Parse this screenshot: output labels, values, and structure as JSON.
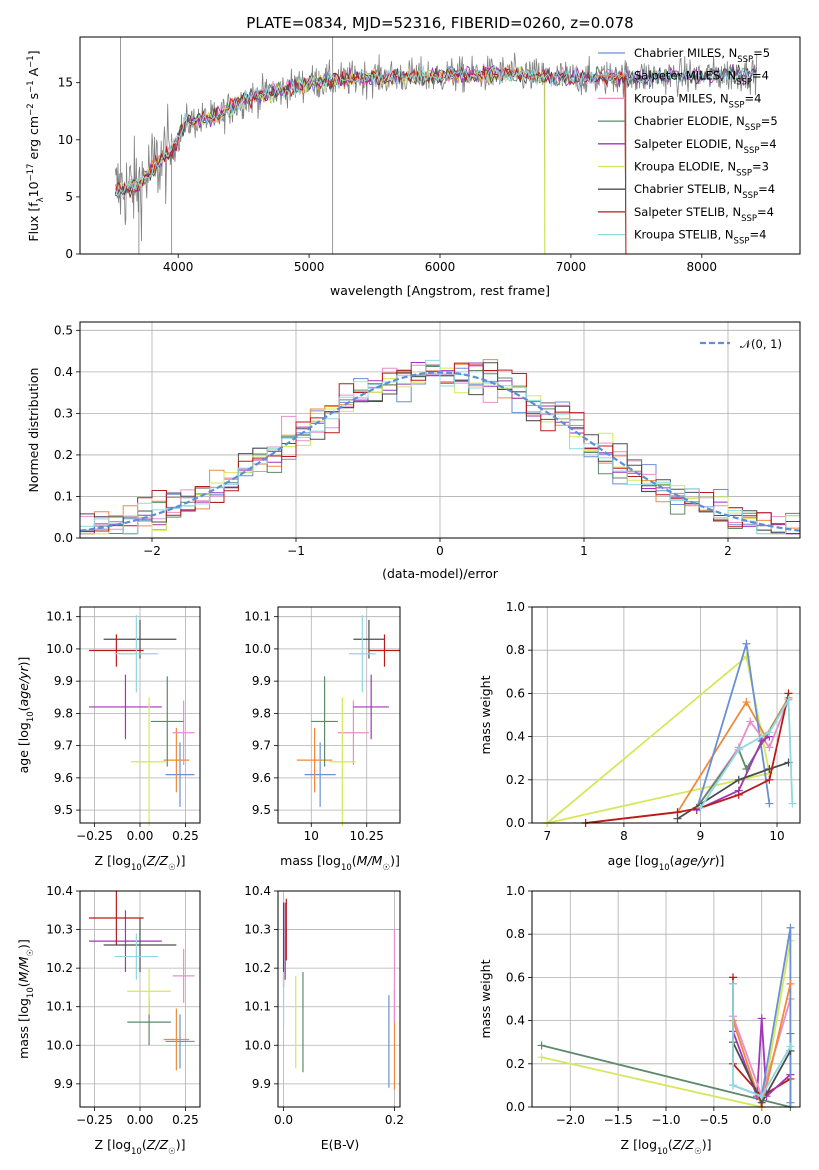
{
  "title": "PLATE=0834, MJD=52316, FIBERID=0260, z=0.078",
  "colors": {
    "chab_miles": "#6a8fd6",
    "salp_miles": "#f08a3a",
    "krou_miles": "#e98ecb",
    "chab_elodie": "#5e8a6a",
    "salp_elodie": "#a235b8",
    "krou_elodie": "#d6e85a",
    "chab_stelib": "#4d4d4d",
    "salp_stelib": "#b81c1c",
    "krou_stelib": "#8fd9e0",
    "data": "#808080"
  },
  "chart_data": [
    {
      "id": "spectrum",
      "type": "line",
      "xlabel": "wavelength [Angstrom, rest frame]",
      "ylabel": "Flux [f_λ 10^-17 erg cm^-2 s^-1 A^-1]",
      "xlim": [
        3250,
        8750
      ],
      "ylim": [
        0,
        19
      ],
      "xticks": [
        4000,
        5000,
        6000,
        7000,
        8000
      ],
      "yticks": [
        0,
        5,
        10,
        15
      ],
      "legend": [
        "Chabrier MILES, N_SSP=5",
        "Salpeter MILES, N_SSP=4",
        "Kroupa MILES, N_SSP=4",
        "Chabrier ELODIE, N_SSP=5",
        "Salpeter ELODIE, N_SSP=4",
        "Kroupa ELODIE, N_SSP=3",
        "Chabrier STELIB, N_SSP=4",
        "Salpeter STELIB, N_SSP=4",
        "Kroupa STELIB, N_SSP=4"
      ],
      "continuum": [
        [
          3520,
          5.5
        ],
        [
          3700,
          6
        ],
        [
          3850,
          8
        ],
        [
          3950,
          9
        ],
        [
          4050,
          11.5
        ],
        [
          4300,
          12
        ],
        [
          4500,
          13.5
        ],
        [
          5000,
          15
        ],
        [
          5500,
          15.5
        ],
        [
          6000,
          15.6
        ],
        [
          6500,
          15.8
        ],
        [
          7000,
          15.4
        ],
        [
          7500,
          15.5
        ],
        [
          8000,
          15.6
        ],
        [
          8400,
          15.8
        ]
      ]
    },
    {
      "id": "residuals",
      "type": "histogram",
      "xlabel": "(data-model)/error",
      "ylabel": "Normed distribution",
      "xlim": [
        -2.5,
        2.5
      ],
      "ylim": [
        0,
        0.52
      ],
      "xticks": [
        -2,
        -1,
        0,
        1,
        2
      ],
      "yticks": [
        0.0,
        0.1,
        0.2,
        0.3,
        0.4,
        0.5
      ],
      "legend": "N(0,1)",
      "bin_width": 0.1
    },
    {
      "id": "age_vs_Z",
      "type": "scatter",
      "xlabel": "Z [log10(Z/Z☉)]",
      "ylabel": "age [log10(age/yr)]",
      "xlim": [
        -0.33,
        0.33
      ],
      "ylim": [
        9.46,
        10.13
      ],
      "xticks": [
        -0.25,
        0.0,
        0.25
      ],
      "ytick_labels": [
        "9.5",
        "9.6",
        "9.7",
        "9.8",
        "9.9",
        "10.0",
        "10.1"
      ],
      "points": [
        {
          "s": "chab_miles",
          "x": 0.22,
          "y": 9.61,
          "dx": 0.08,
          "dy": 0.1
        },
        {
          "s": "salp_miles",
          "x": 0.2,
          "y": 9.655,
          "dx": 0.07,
          "dy": 0.1
        },
        {
          "s": "krou_miles",
          "x": 0.24,
          "y": 9.74,
          "dx": 0.06,
          "dy": 0.1
        },
        {
          "s": "chab_elodie",
          "x": 0.15,
          "y": 9.775,
          "dx": 0.09,
          "dy": 0.14
        },
        {
          "s": "salp_elodie",
          "x": -0.08,
          "y": 9.82,
          "dx": 0.2,
          "dy": 0.1
        },
        {
          "s": "krou_elodie",
          "x": 0.05,
          "y": 9.65,
          "dx": 0.1,
          "dy": 0.2
        },
        {
          "s": "chab_stelib",
          "x": 0.0,
          "y": 10.03,
          "dx": 0.2,
          "dy": 0.06
        },
        {
          "s": "salp_stelib",
          "x": -0.13,
          "y": 9.995,
          "dx": 0.15,
          "dy": 0.05
        },
        {
          "s": "krou_stelib",
          "x": -0.02,
          "y": 9.985,
          "dx": 0.12,
          "dy": 0.12
        }
      ]
    },
    {
      "id": "age_vs_mass",
      "type": "scatter",
      "xlabel": "mass [log10(M/M☉)]",
      "ylabel": "",
      "xlim": [
        9.85,
        10.4
      ],
      "ylim": [
        9.46,
        10.13
      ],
      "xticks": [
        10.0,
        10.25
      ],
      "ytick_labels": [
        "9.5",
        "9.6",
        "9.7",
        "9.8",
        "9.9",
        "10.0",
        "10.1"
      ],
      "points": [
        {
          "s": "chab_miles",
          "x": 10.04,
          "y": 9.61,
          "dx": 0.07,
          "dy": 0.1
        },
        {
          "s": "salp_miles",
          "x": 10.015,
          "y": 9.655,
          "dx": 0.08,
          "dy": 0.1
        },
        {
          "s": "krou_miles",
          "x": 10.19,
          "y": 9.74,
          "dx": 0.07,
          "dy": 0.1
        },
        {
          "s": "chab_elodie",
          "x": 10.06,
          "y": 9.775,
          "dx": 0.06,
          "dy": 0.14
        },
        {
          "s": "salp_elodie",
          "x": 10.27,
          "y": 9.82,
          "dx": 0.08,
          "dy": 0.1
        },
        {
          "s": "krou_elodie",
          "x": 10.14,
          "y": 9.65,
          "dx": 0.06,
          "dy": 0.2
        },
        {
          "s": "chab_stelib",
          "x": 10.26,
          "y": 10.03,
          "dx": 0.07,
          "dy": 0.06
        },
        {
          "s": "salp_stelib",
          "x": 10.33,
          "y": 9.995,
          "dx": 0.07,
          "dy": 0.05
        },
        {
          "s": "krou_stelib",
          "x": 10.23,
          "y": 9.985,
          "dx": 0.06,
          "dy": 0.12
        }
      ]
    },
    {
      "id": "weight_vs_age",
      "type": "line",
      "xlabel": "age [log10(age/yr)]",
      "ylabel": "mass weight",
      "xlim": [
        6.8,
        10.3
      ],
      "ylim": [
        0,
        1
      ],
      "xticks": [
        7,
        8,
        9,
        10
      ],
      "yticks": [
        0.0,
        0.2,
        0.4,
        0.6,
        0.8,
        1.0
      ],
      "series": [
        {
          "s": "krou_elodie",
          "pts": [
            [
              7.0,
              0.0
            ],
            [
              9.6,
              0.77
            ],
            [
              9.9,
              0.23
            ],
            [
              7.0,
              0.0
            ]
          ]
        },
        {
          "s": "salp_miles",
          "pts": [
            [
              7.5,
              0.0
            ],
            [
              8.7,
              0.05
            ],
            [
              9.6,
              0.56
            ],
            [
              9.85,
              0.4
            ],
            [
              10.15,
              0.58
            ]
          ]
        },
        {
          "s": "chab_miles",
          "pts": [
            [
              8.95,
              0.06
            ],
            [
              9.6,
              0.83
            ],
            [
              9.9,
              0.09
            ]
          ]
        },
        {
          "s": "krou_miles",
          "pts": [
            [
              8.95,
              0.07
            ],
            [
              9.5,
              0.35
            ],
            [
              9.65,
              0.47
            ],
            [
              9.9,
              0.35
            ],
            [
              10.15,
              0.57
            ]
          ]
        },
        {
          "s": "chab_elodie",
          "pts": [
            [
              8.95,
              0.07
            ],
            [
              9.5,
              0.34
            ],
            [
              9.6,
              0.25
            ],
            [
              10.15,
              0.57
            ]
          ]
        },
        {
          "s": "salp_elodie",
          "pts": [
            [
              8.95,
              0.06
            ],
            [
              9.5,
              0.15
            ],
            [
              9.8,
              0.38
            ],
            [
              9.9,
              0.4
            ]
          ]
        },
        {
          "s": "chab_stelib",
          "pts": [
            [
              8.7,
              0.02
            ],
            [
              9.5,
              0.2
            ],
            [
              9.9,
              0.25
            ],
            [
              10.15,
              0.28
            ]
          ]
        },
        {
          "s": "salp_stelib",
          "pts": [
            [
              7.5,
              0.0
            ],
            [
              8.7,
              0.05
            ],
            [
              9.0,
              0.07
            ],
            [
              9.5,
              0.13
            ],
            [
              9.9,
              0.2
            ],
            [
              10.15,
              0.6
            ]
          ]
        },
        {
          "s": "krou_stelib",
          "pts": [
            [
              9.0,
              0.07
            ],
            [
              9.5,
              0.34
            ],
            [
              9.9,
              0.42
            ],
            [
              10.15,
              0.57
            ],
            [
              10.2,
              0.09
            ]
          ]
        }
      ]
    },
    {
      "id": "mass_vs_Z",
      "type": "scatter",
      "xlabel": "Z [log10(Z/Z☉)]",
      "ylabel": "mass [log10(M/M☉)]",
      "xlim": [
        -0.33,
        0.33
      ],
      "ylim": [
        9.84,
        10.4
      ],
      "xticks": [
        -0.25,
        0.0,
        0.25
      ],
      "ytick_labels": [
        "9.9",
        "10.0",
        "10.1",
        "10.2",
        "10.3",
        "10.4"
      ],
      "points": [
        {
          "s": "chab_miles",
          "x": 0.22,
          "y": 10.01,
          "dx": 0.08,
          "dy": 0.07
        },
        {
          "s": "salp_miles",
          "x": 0.2,
          "y": 10.015,
          "dx": 0.07,
          "dy": 0.08
        },
        {
          "s": "krou_miles",
          "x": 0.24,
          "y": 10.18,
          "dx": 0.06,
          "dy": 0.07
        },
        {
          "s": "chab_elodie",
          "x": 0.05,
          "y": 10.06,
          "dx": 0.12,
          "dy": 0.06
        },
        {
          "s": "salp_elodie",
          "x": -0.08,
          "y": 10.27,
          "dx": 0.2,
          "dy": 0.08
        },
        {
          "s": "krou_elodie",
          "x": 0.05,
          "y": 10.14,
          "dx": 0.12,
          "dy": 0.06
        },
        {
          "s": "chab_stelib",
          "x": 0.0,
          "y": 10.26,
          "dx": 0.2,
          "dy": 0.07
        },
        {
          "s": "salp_stelib",
          "x": -0.13,
          "y": 10.33,
          "dx": 0.15,
          "dy": 0.07
        },
        {
          "s": "krou_stelib",
          "x": -0.02,
          "y": 10.23,
          "dx": 0.12,
          "dy": 0.06
        }
      ]
    },
    {
      "id": "mass_vs_ebv",
      "type": "scatter",
      "xlabel": "E(B-V)",
      "ylabel": "",
      "xlim": [
        -0.01,
        0.21
      ],
      "ylim": [
        9.84,
        10.4
      ],
      "xticks": [
        0.0,
        0.2
      ],
      "ytick_labels": [
        "9.9",
        "10.0",
        "10.1",
        "10.2",
        "10.3",
        "10.4"
      ],
      "points": [
        {
          "s": "chab_miles",
          "x": 0.19,
          "y": 10.01,
          "dx": 0,
          "dy": 0.12
        },
        {
          "s": "salp_miles",
          "x": 0.2,
          "y": 10.015,
          "dx": 0,
          "dy": 0.13
        },
        {
          "s": "krou_miles",
          "x": 0.2,
          "y": 10.18,
          "dx": 0,
          "dy": 0.12
        },
        {
          "s": "chab_elodie",
          "x": 0.035,
          "y": 10.06,
          "dx": 0,
          "dy": 0.13
        },
        {
          "s": "salp_elodie",
          "x": 0.003,
          "y": 10.27,
          "dx": 0,
          "dy": 0.1
        },
        {
          "s": "krou_elodie",
          "x": 0.022,
          "y": 10.06,
          "dx": 0,
          "dy": 0.12
        },
        {
          "s": "chab_stelib",
          "x": 0.0,
          "y": 10.26,
          "dx": 0,
          "dy": 0.11
        },
        {
          "s": "salp_stelib",
          "x": 0.005,
          "y": 10.3,
          "dx": 0,
          "dy": 0.08
        },
        {
          "s": "krou_stelib",
          "x": 0.0,
          "y": 10.12,
          "dx": 0,
          "dy": 0.07
        }
      ]
    },
    {
      "id": "weight_vs_Z",
      "type": "line",
      "xlabel": "Z [log10(Z/Z☉)]",
      "ylabel": "mass weight",
      "xlim": [
        -2.4,
        0.4
      ],
      "ylim": [
        0,
        1
      ],
      "xticks": [
        -2.0,
        -1.5,
        -1.0,
        -0.5,
        0.0
      ],
      "xtick_labels": [
        "−2.0",
        "−1.5",
        "−1.0",
        "−0.5",
        "0.0"
      ],
      "yticks": [
        0.0,
        0.2,
        0.4,
        0.6,
        0.8,
        1.0
      ],
      "series": [
        {
          "s": "chab_elodie",
          "pts": [
            [
              -2.3,
              0.285
            ],
            [
              0.3,
              0.0
            ],
            [
              0.3,
              0.34
            ]
          ]
        },
        {
          "s": "krou_elodie",
          "pts": [
            [
              -2.3,
              0.23
            ],
            [
              0.0,
              0.0
            ],
            [
              0.3,
              0.77
            ]
          ]
        },
        {
          "s": "salp_stelib",
          "pts": [
            [
              -0.3,
              0.6
            ],
            [
              -0.3,
              0.2
            ],
            [
              0.0,
              0.05
            ],
            [
              0.3,
              0.13
            ]
          ]
        },
        {
          "s": "salp_elodie",
          "pts": [
            [
              -0.3,
              0.35
            ],
            [
              -0.05,
              0.05
            ],
            [
              0.0,
              0.41
            ],
            [
              0.05,
              0.05
            ],
            [
              0.3,
              0.15
            ]
          ]
        },
        {
          "s": "krou_miles",
          "pts": [
            [
              -0.3,
              0.42
            ],
            [
              0.0,
              0.05
            ],
            [
              0.3,
              0.5
            ]
          ]
        },
        {
          "s": "chab_miles",
          "pts": [
            [
              -0.3,
              0.1
            ],
            [
              0.0,
              0.05
            ],
            [
              0.3,
              0.83
            ],
            [
              0.3,
              0.02
            ]
          ]
        },
        {
          "s": "salp_miles",
          "pts": [
            [
              -0.3,
              0.4
            ],
            [
              0.0,
              0.0
            ],
            [
              0.3,
              0.57
            ]
          ]
        },
        {
          "s": "chab_stelib",
          "pts": [
            [
              -0.3,
              0.57
            ],
            [
              -0.3,
              0.3
            ],
            [
              0.0,
              0.02
            ],
            [
              0.3,
              0.26
            ]
          ]
        },
        {
          "s": "krou_stelib",
          "pts": [
            [
              -0.3,
              0.57
            ],
            [
              -0.3,
              0.1
            ],
            [
              0.0,
              0.05
            ],
            [
              0.3,
              0.28
            ]
          ]
        }
      ]
    }
  ]
}
